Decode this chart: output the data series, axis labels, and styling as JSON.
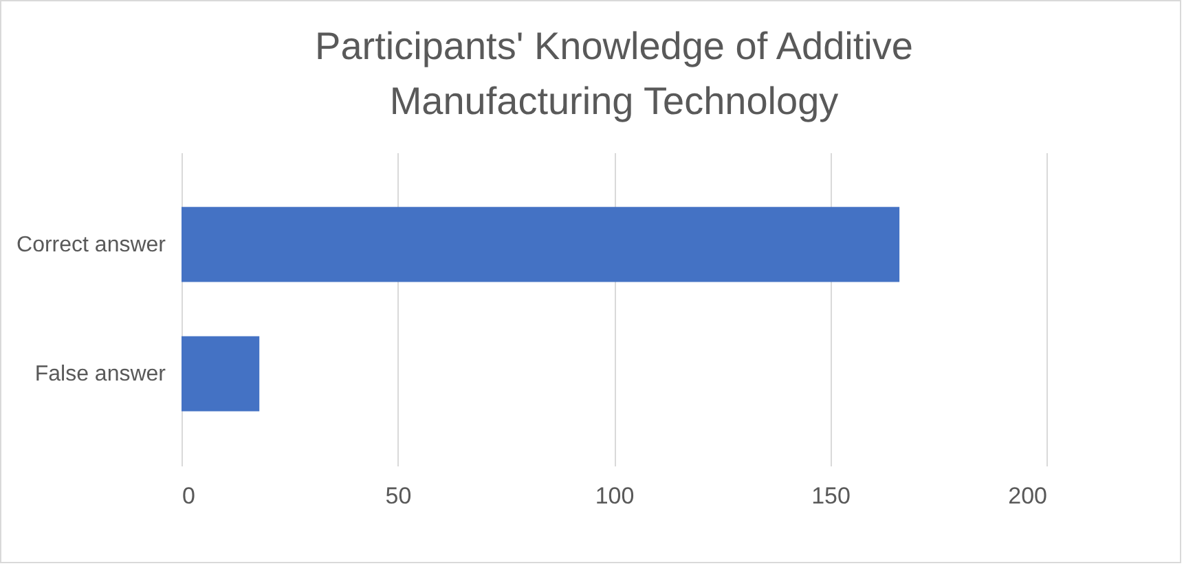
{
  "chart_data": {
    "type": "bar",
    "orientation": "horizontal",
    "title": "Participants' Knowledge of Additive Manufacturing Technology",
    "categories": [
      "Correct answer",
      "False answer"
    ],
    "series": [
      {
        "color": "#4472c4",
        "values": [
          166,
          18
        ]
      }
    ],
    "xlim": [
      0,
      200
    ],
    "xticks": [
      0,
      50,
      100,
      150,
      200
    ],
    "grid": "x",
    "legend": false
  }
}
